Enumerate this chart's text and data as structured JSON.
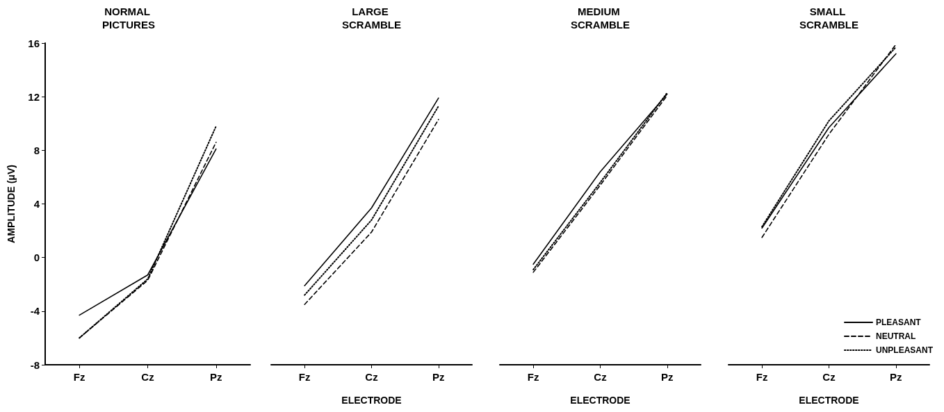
{
  "chart_data": [
    {
      "type": "line",
      "title": "NORMAL PICTURES",
      "ylabel": "AMPLITUDE (μV)",
      "categories": [
        "Fz",
        "Cz",
        "Pz"
      ],
      "ylim": [
        -8,
        16
      ],
      "yticks": [
        -8,
        -4,
        0,
        4,
        8,
        12,
        16
      ],
      "grid": false,
      "legend": false,
      "marker": "none",
      "series": [
        {
          "color": "#000000",
          "line_style": "solid",
          "values": [
            -4.3,
            -1.3,
            8.1
          ]
        },
        {
          "color": "#000000",
          "line_style": "dashed",
          "values": [
            -6.0,
            -1.7,
            8.6
          ]
        },
        {
          "color": "#000000",
          "line_style": "dotted",
          "values": [
            -6.0,
            -1.6,
            9.8
          ]
        }
      ]
    },
    {
      "type": "line",
      "title": "LARGE SCRAMBLE",
      "xlabel": "ELECTRODE",
      "categories": [
        "Fz",
        "Cz",
        "Pz"
      ],
      "ylim": [
        -8,
        16
      ],
      "tick_labels": "x",
      "grid": false,
      "legend": false,
      "marker": "none",
      "series": [
        {
          "color": "#000000",
          "line_style": "solid",
          "values": [
            -2.1,
            3.7,
            11.9
          ]
        },
        {
          "color": "#000000",
          "line_style": "dashed",
          "values": [
            -3.5,
            1.9,
            10.3
          ]
        },
        {
          "color": "#000000",
          "line_style": "dotted",
          "values": [
            -2.8,
            2.8,
            11.3
          ]
        }
      ]
    },
    {
      "type": "line",
      "title": "MEDIUM SCRAMBLE",
      "xlabel": "ELECTRODE",
      "categories": [
        "Fz",
        "Cz",
        "Pz"
      ],
      "ylim": [
        -8,
        16
      ],
      "tick_labels": "x",
      "grid": false,
      "legend": false,
      "marker": "none",
      "series": [
        {
          "color": "#000000",
          "line_style": "solid",
          "values": [
            -0.5,
            6.4,
            12.2
          ]
        },
        {
          "color": "#000000",
          "line_style": "dashed",
          "values": [
            -1.1,
            5.4,
            12.1
          ]
        },
        {
          "color": "#000000",
          "line_style": "dotted",
          "values": [
            -0.9,
            5.6,
            12.3
          ]
        }
      ]
    },
    {
      "type": "line",
      "title": "SMALL SCRAMBLE",
      "xlabel": "ELECTRODE",
      "categories": [
        "Fz",
        "Cz",
        "Pz"
      ],
      "ylim": [
        -8,
        16
      ],
      "tick_labels": "x",
      "grid": false,
      "legend": "bottom right",
      "marker": "none",
      "series": [
        {
          "name": "PLEASANT",
          "color": "#000000",
          "line_style": "solid",
          "values": [
            2.2,
            9.7,
            15.2
          ]
        },
        {
          "name": "NEUTRAL",
          "color": "#000000",
          "line_style": "dashed",
          "values": [
            1.5,
            9.2,
            15.9
          ]
        },
        {
          "name": "UNPLEASANT",
          "color": "#000000",
          "line_style": "dotted",
          "values": [
            2.3,
            10.2,
            15.7
          ]
        }
      ]
    }
  ]
}
